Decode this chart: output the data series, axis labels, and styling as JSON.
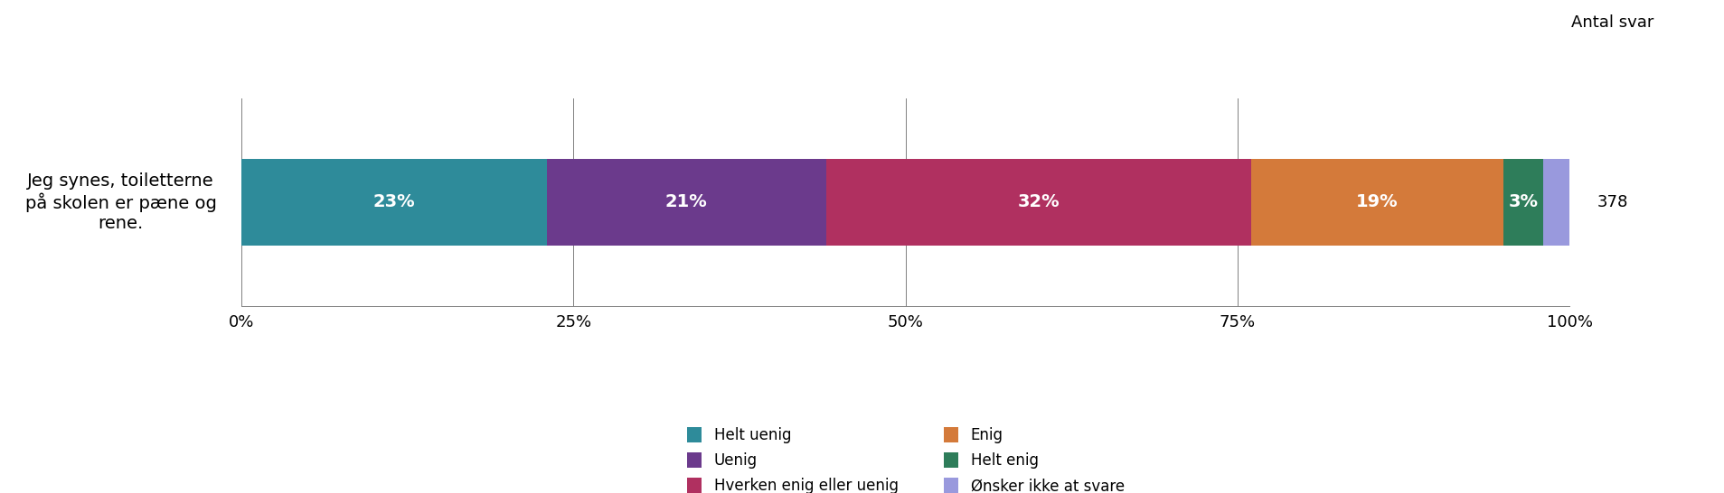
{
  "question_lines": [
    "Jeg synes, toiletterne",
    "på skolen er pæne og",
    "rene."
  ],
  "antal_svar_label": "Antal svar",
  "antal_svar": "378",
  "segments": [
    {
      "label": "Helt uenig",
      "value": 23,
      "color": "#2E8B9A"
    },
    {
      "label": "Uenig",
      "value": 21,
      "color": "#6B3A8C"
    },
    {
      "label": "Hverken enig eller uenig",
      "value": 32,
      "color": "#B03060"
    },
    {
      "label": "Enig",
      "value": 19,
      "color": "#D47A3A"
    },
    {
      "label": "Helt enig",
      "value": 3,
      "color": "#2E7D5A"
    },
    {
      "label": "Ønsker ikke at svare",
      "value": 2,
      "color": "#9999DD"
    }
  ],
  "xticks": [
    0,
    25,
    50,
    75,
    100
  ],
  "xtick_labels": [
    "0%",
    "25%",
    "50%",
    "75%",
    "100%"
  ],
  "legend_col1": [
    "Helt uenig",
    "Hverken enig eller uenig",
    "Helt enig"
  ],
  "legend_col2": [
    "Uenig",
    "Enig",
    "Ønsker ikke at svare"
  ],
  "bar_height": 0.5,
  "label_fontsize": 14,
  "tick_fontsize": 13,
  "legend_fontsize": 12,
  "question_fontsize": 14,
  "antal_fontsize": 13
}
